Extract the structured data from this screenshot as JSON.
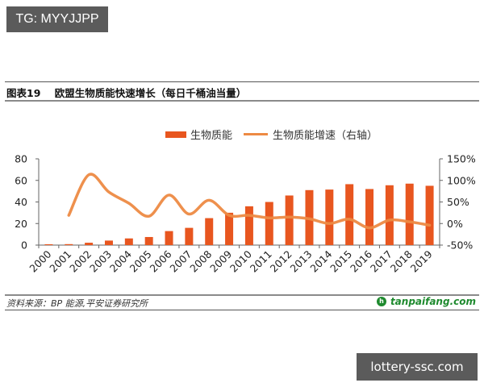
{
  "watermark_top": "TG: MYYJJPP",
  "watermark_bottom": "lottery-ssc.com",
  "figure": {
    "title": "图表19    欧盟生物质能快速增长（每日千桶油当量）"
  },
  "footer": {
    "source": "资料来源：BP 能源,平安证券研究所",
    "brand": "tanpaifang.com",
    "brand_logo_glyph": "h"
  },
  "colors": {
    "bar": "#E8561F",
    "line": "#ED8A43",
    "brand": "#1E8A2E"
  },
  "chart_data": {
    "type": "bar+line",
    "title": "欧盟生物质能快速增长（每日千桶油当量）",
    "xlabel": "",
    "ylabel": "",
    "categories": [
      "2000",
      "2001",
      "2002",
      "2003",
      "2004",
      "2005",
      "2006",
      "2007",
      "2008",
      "2009",
      "2010",
      "2011",
      "2012",
      "2013",
      "2014",
      "2015",
      "2016",
      "2017",
      "2018",
      "2019"
    ],
    "series": [
      {
        "name": "生物质能",
        "type": "bar",
        "axis": "left",
        "values": [
          0.8,
          0.9,
          2.2,
          4.2,
          6.2,
          7.5,
          13.0,
          16.0,
          25.0,
          30.0,
          36.0,
          40.0,
          46.0,
          51.0,
          51.5,
          56.5,
          52.0,
          55.5,
          57.0,
          55.0
        ]
      },
      {
        "name": "生物质能增速（右轴）",
        "type": "line",
        "axis": "right",
        "values": [
          null,
          19,
          113,
          73,
          47,
          17,
          66,
          22,
          54,
          19,
          19,
          13,
          15,
          11,
          0,
          10,
          -10,
          8,
          4,
          -4
        ]
      }
    ],
    "left_axis": {
      "ylim": [
        0,
        80
      ],
      "ticks": [
        "0",
        "20",
        "40",
        "60",
        "80"
      ]
    },
    "right_axis": {
      "ylim": [
        -50,
        150
      ],
      "ticks": [
        "-50%",
        "0%",
        "50%",
        "100%",
        "150%"
      ]
    },
    "legend": {
      "position": "top",
      "entries": [
        "生物质能",
        "生物质能增速（右轴）"
      ]
    },
    "grid": false
  }
}
